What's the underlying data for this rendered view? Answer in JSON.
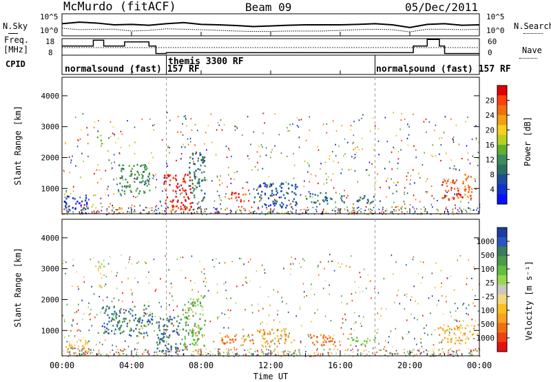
{
  "header": {
    "station": "McMurdo (fitACF)",
    "beam": "Beam 09",
    "date": "05/Dec/2011"
  },
  "top_panels": {
    "nsky_label": "N.Sky",
    "nsearch_label": "N.Search",
    "freq_label_line1": "Freq.",
    "freq_label_line2": "[MHz]",
    "nave_label": "Nave",
    "cpid_label": "CPID",
    "noise_ticks": [
      "10^5",
      "10^0"
    ],
    "freq_ticks": [
      "18",
      "8"
    ],
    "nave_ticks": [
      "60",
      "0"
    ]
  },
  "cpid_segments": [
    {
      "label": "normalsound (fast) 157 RF",
      "start_h": 0.0
    },
    {
      "label": "themis 3300 RF",
      "start_h": 6.0
    },
    {
      "label": "normalsound (fast) 157 RF",
      "start_h": 18.0
    }
  ],
  "chart_data": [
    {
      "type": "heatmap",
      "name": "Power",
      "ylabel": "Slant Range [km]",
      "xlabel": "Time UT",
      "x_ticks": [
        "00:00",
        "04:00",
        "08:00",
        "12:00",
        "16:00",
        "20:00",
        "00:00"
      ],
      "y_ticks": [
        "1000",
        "2000",
        "3000",
        "4000"
      ],
      "xlim_hours": [
        0,
        24
      ],
      "ylim_km": [
        180,
        4600
      ],
      "colorbar_label": "Power [dB]",
      "colorbar_ticks": [
        "28",
        "24",
        "20",
        "16",
        "12",
        "8",
        "4"
      ],
      "colorbar_colors": [
        "#e00000",
        "#ff4010",
        "#f07010",
        "#f0a010",
        "#f8d020",
        "#b8d020",
        "#60b030",
        "#3c8c5c",
        "#2a7060",
        "#1c4ca0",
        "#1030d0",
        "#0a10ff"
      ],
      "blobs": [
        {
          "t0": 3.2,
          "t1": 5.2,
          "r0": 850,
          "r1": 1800,
          "level": 7
        },
        {
          "t0": 5.8,
          "t1": 7.4,
          "r0": 300,
          "r1": 1500,
          "level": 0
        },
        {
          "t0": 7.2,
          "t1": 8.2,
          "r0": 400,
          "r1": 2200,
          "level": 8
        },
        {
          "t0": 2.0,
          "t1": 2.3,
          "r0": 2400,
          "r1": 2800,
          "level": 5
        },
        {
          "t0": 9.5,
          "t1": 10.8,
          "r0": 600,
          "r1": 900,
          "level": 1
        },
        {
          "t0": 11.0,
          "t1": 13.5,
          "r0": 400,
          "r1": 1200,
          "level": 9
        },
        {
          "t0": 14.0,
          "t1": 15.5,
          "r0": 500,
          "r1": 900,
          "level": 8
        },
        {
          "t0": 16.0,
          "t1": 18.0,
          "r0": 550,
          "r1": 800,
          "level": 8
        },
        {
          "t0": 21.8,
          "t1": 23.0,
          "r0": 600,
          "r1": 1300,
          "level": 1
        },
        {
          "t0": 23.0,
          "t1": 23.8,
          "r0": 700,
          "r1": 1500,
          "level": 2
        },
        {
          "t0": 0.1,
          "t1": 1.5,
          "r0": 200,
          "r1": 800,
          "level": 10
        }
      ]
    },
    {
      "type": "heatmap",
      "name": "Velocity",
      "ylabel": "Slant Range [km]",
      "xlabel": "Time UT",
      "x_ticks": [
        "00:00",
        "04:00",
        "08:00",
        "12:00",
        "16:00",
        "20:00",
        "00:00"
      ],
      "y_ticks": [
        "1000",
        "2000",
        "3000",
        "4000"
      ],
      "xlim_hours": [
        0,
        24
      ],
      "ylim_km": [
        180,
        4600
      ],
      "colorbar_label": "Velocity [m s⁻¹]",
      "colorbar_ticks": [
        "1000",
        "500",
        "100",
        "25",
        "-25",
        "-100",
        "-500",
        "-1000"
      ],
      "colorbar_colors": [
        "#1c3ca0",
        "#2a56c0",
        "#3c7a5c",
        "#4c9a4c",
        "#60c040",
        "#9cd84c",
        "#c8c8c0",
        "#f0d880",
        "#f8c020",
        "#f8a020",
        "#f07010",
        "#f04010",
        "#e81010"
      ],
      "blobs": [
        {
          "t0": 2.2,
          "t1": 5.2,
          "r0": 850,
          "r1": 1850,
          "level": 2
        },
        {
          "t0": 5.4,
          "t1": 7.2,
          "r0": 300,
          "r1": 1500,
          "level": 2
        },
        {
          "t0": 7.0,
          "t1": 8.2,
          "r0": 500,
          "r1": 2200,
          "level": 4
        },
        {
          "t0": 2.0,
          "t1": 2.4,
          "r0": 2400,
          "r1": 3300,
          "level": 6
        },
        {
          "t0": 9.0,
          "t1": 11.0,
          "r0": 550,
          "r1": 900,
          "level": 10
        },
        {
          "t0": 11.2,
          "t1": 13.2,
          "r0": 500,
          "r1": 1100,
          "level": 9
        },
        {
          "t0": 14.2,
          "t1": 16.0,
          "r0": 500,
          "r1": 900,
          "level": 10
        },
        {
          "t0": 16.2,
          "t1": 18.0,
          "r0": 550,
          "r1": 800,
          "level": 4
        },
        {
          "t0": 21.6,
          "t1": 23.9,
          "r0": 600,
          "r1": 1200,
          "level": 8
        },
        {
          "t0": 0.1,
          "t1": 1.5,
          "r0": 200,
          "r1": 700,
          "level": 8
        }
      ]
    }
  ],
  "noise_series": {
    "nsky_hours": [
      0,
      1,
      2,
      3,
      4,
      5,
      6,
      7,
      8,
      9,
      10,
      11,
      12,
      13,
      14,
      15,
      16,
      17,
      18,
      19,
      20,
      21,
      22,
      23,
      24
    ],
    "nsky_values": [
      0.55,
      0.62,
      0.58,
      0.5,
      0.52,
      0.48,
      0.55,
      0.6,
      0.52,
      0.5,
      0.47,
      0.42,
      0.45,
      0.48,
      0.5,
      0.5,
      0.5,
      0.52,
      0.55,
      0.5,
      0.38,
      0.52,
      0.55,
      0.48,
      0.5
    ],
    "nsearch_values": [
      0.35,
      0.28,
      0.3,
      0.3,
      0.22,
      0.25,
      0.32,
      0.3,
      0.28,
      0.25,
      0.22,
      0.2,
      0.2,
      0.22,
      0.22,
      0.22,
      0.25,
      0.28,
      0.3,
      0.28,
      0.18,
      0.3,
      0.3,
      0.28,
      0.3
    ]
  },
  "freq_series": {
    "hours": [
      0,
      1.8,
      1.8,
      2.4,
      2.4,
      3.6,
      3.6,
      5.0,
      5.0,
      5.4,
      5.4,
      6.0,
      6.0,
      20.2,
      20.2,
      21.0,
      21.0,
      21.7,
      21.7,
      22.0,
      22.0,
      24.0
    ],
    "values": [
      0.55,
      0.55,
      0.9,
      0.9,
      0.55,
      0.55,
      0.8,
      0.8,
      0.55,
      0.55,
      0.1,
      0.1,
      0.15,
      0.15,
      0.55,
      0.55,
      0.95,
      0.95,
      0.55,
      0.55,
      0.1,
      0.1
    ]
  }
}
